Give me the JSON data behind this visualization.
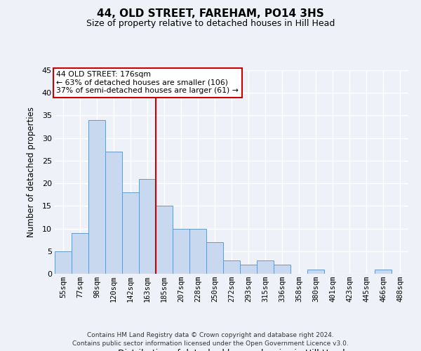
{
  "title": "44, OLD STREET, FAREHAM, PO14 3HS",
  "subtitle": "Size of property relative to detached houses in Hill Head",
  "xlabel": "Distribution of detached houses by size in Hill Head",
  "ylabel": "Number of detached properties",
  "bar_color": "#c8d8ee",
  "bar_edge_color": "#6699cc",
  "bin_labels": [
    "55sqm",
    "77sqm",
    "98sqm",
    "120sqm",
    "142sqm",
    "163sqm",
    "185sqm",
    "207sqm",
    "228sqm",
    "250sqm",
    "272sqm",
    "293sqm",
    "315sqm",
    "336sqm",
    "358sqm",
    "380sqm",
    "401sqm",
    "423sqm",
    "445sqm",
    "466sqm",
    "488sqm"
  ],
  "values": [
    5,
    9,
    34,
    27,
    18,
    21,
    15,
    10,
    10,
    7,
    3,
    2,
    3,
    2,
    0,
    1,
    0,
    0,
    0,
    1,
    0
  ],
  "ylim": [
    0,
    45
  ],
  "yticks": [
    0,
    5,
    10,
    15,
    20,
    25,
    30,
    35,
    40,
    45
  ],
  "vline_x": 5.5,
  "property_line_label": "44 OLD STREET: 176sqm",
  "annotation_line1": "← 63% of detached houses are smaller (106)",
  "annotation_line2": "37% of semi-detached houses are larger (61) →",
  "annotation_box_color": "#ffffff",
  "annotation_box_edge_color": "#cc0000",
  "vline_color": "#cc0000",
  "background_color": "#eef2f8",
  "grid_color": "#ffffff",
  "footer_line1": "Contains HM Land Registry data © Crown copyright and database right 2024.",
  "footer_line2": "Contains public sector information licensed under the Open Government Licence v3.0."
}
